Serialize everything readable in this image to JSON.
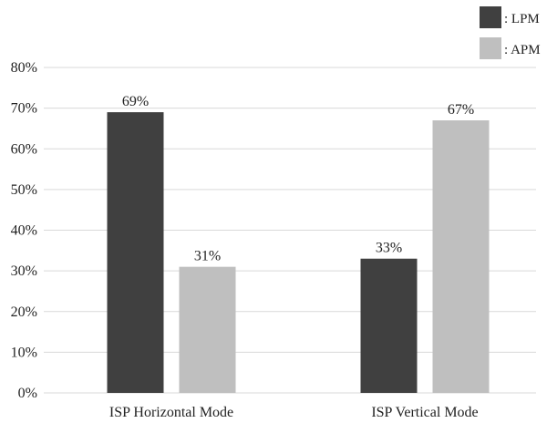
{
  "chart_data": {
    "type": "bar",
    "categories": [
      "ISP Horizontal Mode",
      "ISP Vertical Mode"
    ],
    "series": [
      {
        "name": ": LPM",
        "values": [
          69,
          33
        ],
        "labels": [
          "69%",
          "33%"
        ],
        "color": "#404040"
      },
      {
        "name": ": APM",
        "values": [
          31,
          67
        ],
        "labels": [
          "31%",
          "67%"
        ],
        "color": "#bfbfbf"
      }
    ],
    "yticks": [
      "0%",
      "10%",
      "20%",
      "30%",
      "40%",
      "50%",
      "60%",
      "70%",
      "80%"
    ],
    "ylim": [
      0,
      80
    ],
    "grid": true,
    "gridColor": "#d9d9d9",
    "legend_position": "top-right"
  }
}
